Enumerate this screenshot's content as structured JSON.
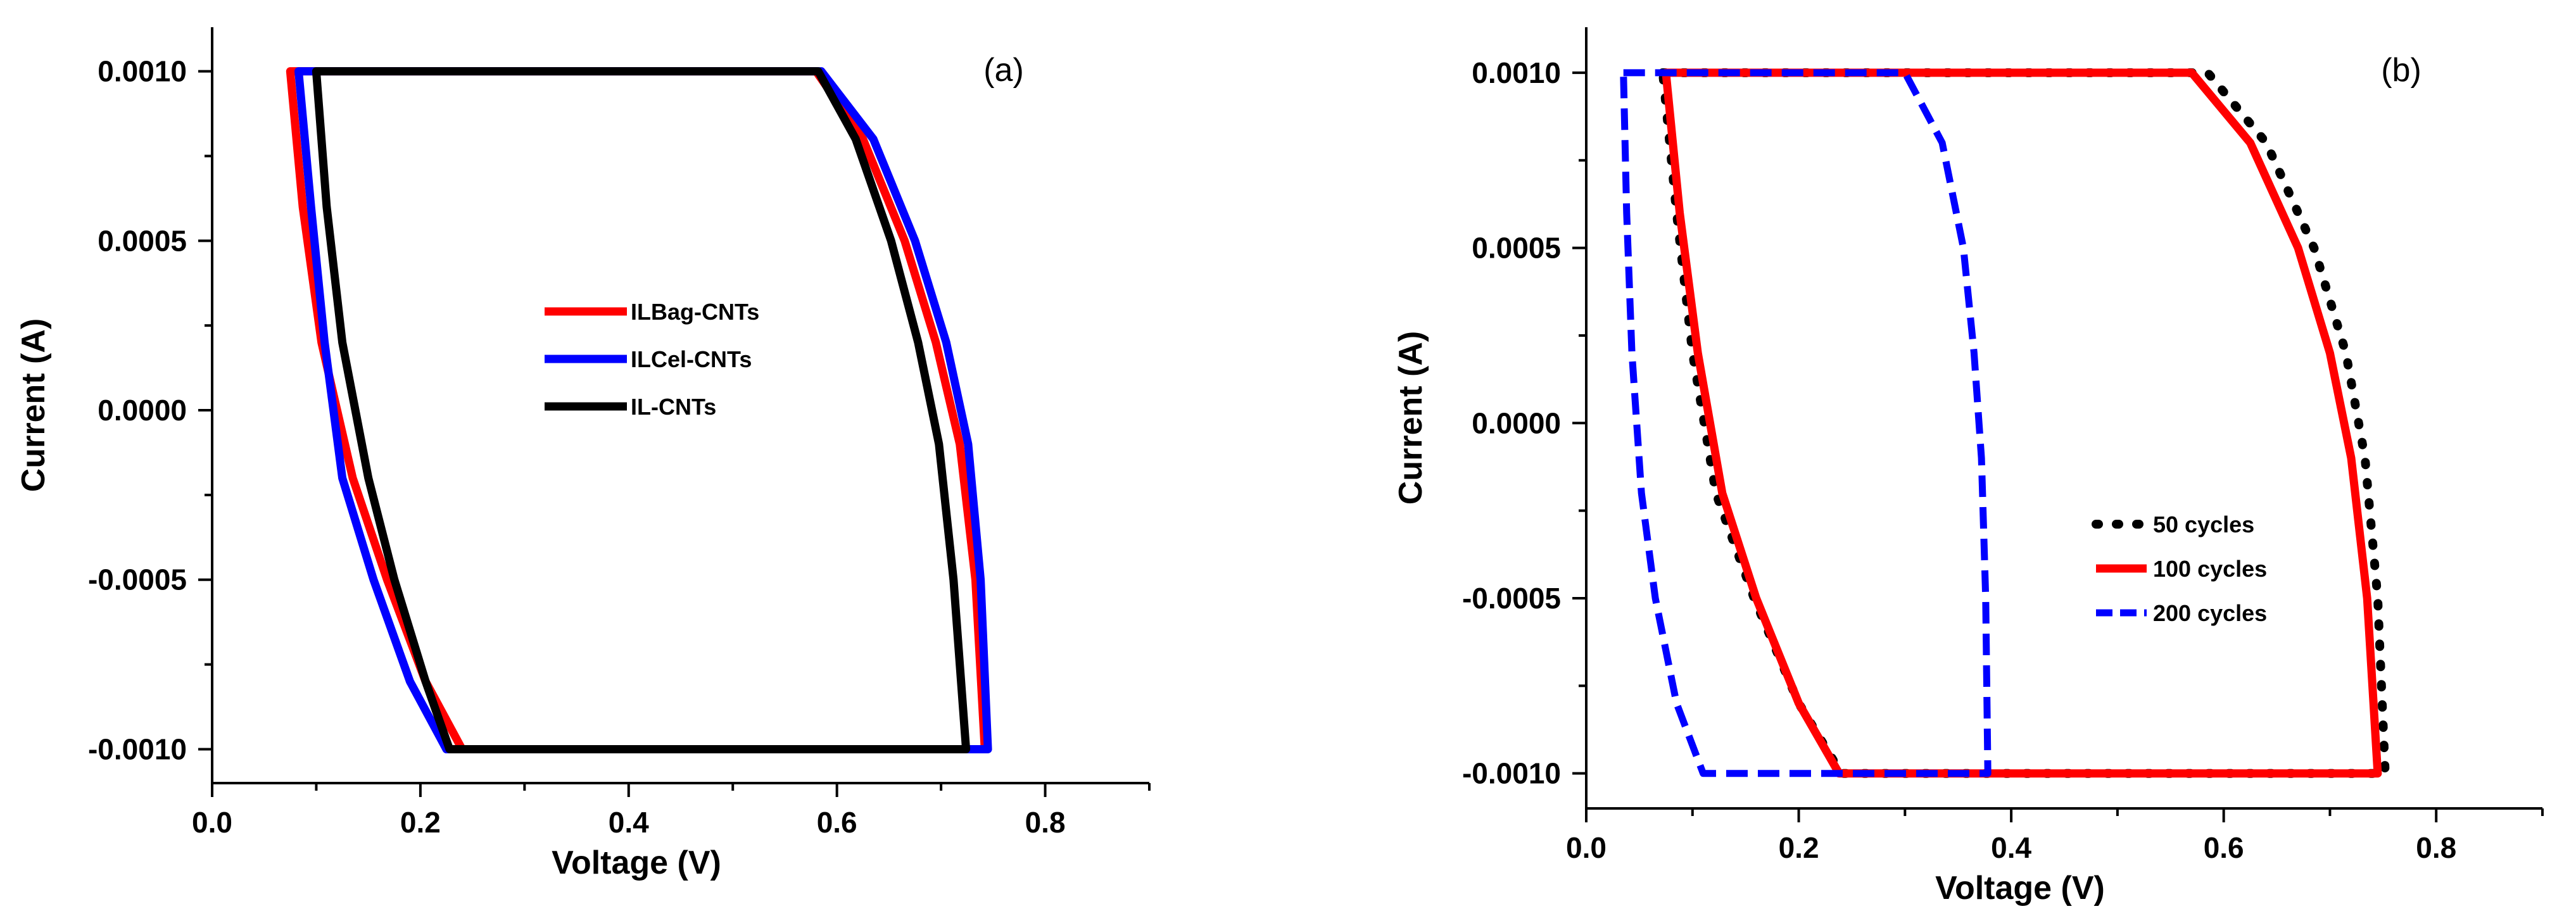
{
  "chart_data": [
    {
      "type": "line",
      "panel_label": "(a)",
      "title": "",
      "xlabel": "Voltage (V)",
      "ylabel": "Current (A)",
      "xlim": [
        0.0,
        0.9
      ],
      "ylim": [
        -0.0011,
        0.00113
      ],
      "xticks": [
        0.0,
        0.2,
        0.4,
        0.6,
        0.8
      ],
      "xtick_labels": [
        "0.0",
        "0.2",
        "0.4",
        "0.6",
        "0.8"
      ],
      "yticks": [
        0.001,
        0.0005,
        0.0,
        -0.0005,
        -0.001
      ],
      "ytick_labels": [
        "0.0010",
        "0.0005",
        "0.0000",
        "-0.0005",
        "-0.0010"
      ],
      "legend_position": "center",
      "series": [
        {
          "name": "ILBag-CNTs",
          "color": "#ff0000",
          "style": "solid",
          "x": [
            0.075,
            0.58,
            0.625,
            0.665,
            0.695,
            0.718,
            0.733,
            0.742,
            0.24,
            0.205,
            0.168,
            0.135,
            0.105,
            0.087,
            0.075
          ],
          "y": [
            0.001,
            0.001,
            0.0008,
            0.0005,
            0.0002,
            -0.0001,
            -0.0005,
            -0.001,
            -0.001,
            -0.0008,
            -0.0005,
            -0.0002,
            0.0002,
            0.0006,
            0.001
          ]
        },
        {
          "name": "ILCel-CNTs",
          "color": "#0000ff",
          "style": "solid",
          "x": [
            0.083,
            0.585,
            0.635,
            0.675,
            0.705,
            0.726,
            0.738,
            0.745,
            0.225,
            0.19,
            0.155,
            0.125,
            0.108,
            0.095,
            0.083
          ],
          "y": [
            0.001,
            0.001,
            0.0008,
            0.0005,
            0.0002,
            -0.0001,
            -0.0005,
            -0.001,
            -0.001,
            -0.0008,
            -0.0005,
            -0.0002,
            0.0002,
            0.0006,
            0.001
          ]
        },
        {
          "name": "IL-CNTs",
          "color": "#000000",
          "style": "solid",
          "x": [
            0.1,
            0.582,
            0.618,
            0.652,
            0.678,
            0.698,
            0.712,
            0.724,
            0.228,
            0.205,
            0.175,
            0.15,
            0.125,
            0.11,
            0.1
          ],
          "y": [
            0.001,
            0.001,
            0.0008,
            0.0005,
            0.0002,
            -0.0001,
            -0.0005,
            -0.001,
            -0.001,
            -0.0008,
            -0.0005,
            -0.0002,
            0.0002,
            0.0006,
            0.001
          ]
        }
      ]
    },
    {
      "type": "line",
      "panel_label": "(b)",
      "title": "",
      "xlabel": "Voltage (V)",
      "ylabel": "Current (A)",
      "xlim": [
        0.0,
        0.9
      ],
      "ylim": [
        -0.0011,
        0.00113
      ],
      "xticks": [
        0.0,
        0.2,
        0.4,
        0.6,
        0.8
      ],
      "xtick_labels": [
        "0.0",
        "0.2",
        "0.4",
        "0.6",
        "0.8"
      ],
      "yticks": [
        0.001,
        0.0005,
        0.0,
        -0.0005,
        -0.001
      ],
      "ytick_labels": [
        "0.0010",
        "0.0005",
        "0.0000",
        "-0.0005",
        "-0.0010"
      ],
      "legend_position": "lower-center",
      "series": [
        {
          "name": "50 cycles",
          "color": "#000000",
          "style": "dotted",
          "x": [
            0.072,
            0.585,
            0.64,
            0.685,
            0.715,
            0.733,
            0.745,
            0.752,
            0.24,
            0.2,
            0.158,
            0.122,
            0.1,
            0.085,
            0.072
          ],
          "y": [
            0.001,
            0.001,
            0.0008,
            0.0005,
            0.0002,
            -0.0001,
            -0.0005,
            -0.001,
            -0.001,
            -0.0008,
            -0.0005,
            -0.0002,
            0.0002,
            0.0006,
            0.001
          ]
        },
        {
          "name": "100 cycles",
          "color": "#ff0000",
          "style": "solid",
          "x": [
            0.075,
            0.57,
            0.625,
            0.67,
            0.7,
            0.72,
            0.735,
            0.745,
            0.238,
            0.2,
            0.16,
            0.128,
            0.105,
            0.088,
            0.075
          ],
          "y": [
            0.001,
            0.001,
            0.0008,
            0.0005,
            0.0002,
            -0.0001,
            -0.0005,
            -0.001,
            -0.001,
            -0.0008,
            -0.0005,
            -0.0002,
            0.0002,
            0.0006,
            0.001
          ]
        },
        {
          "name": "200 cycles",
          "color": "#0000ff",
          "style": "dashed",
          "x": [
            0.035,
            0.3,
            0.335,
            0.355,
            0.365,
            0.372,
            0.376,
            0.378,
            0.11,
            0.085,
            0.065,
            0.052,
            0.043,
            0.038,
            0.035
          ],
          "y": [
            0.001,
            0.001,
            0.0008,
            0.0005,
            0.0002,
            -0.0001,
            -0.0005,
            -0.001,
            -0.001,
            -0.0008,
            -0.0005,
            -0.0002,
            0.0002,
            0.0006,
            0.001
          ]
        }
      ]
    }
  ]
}
